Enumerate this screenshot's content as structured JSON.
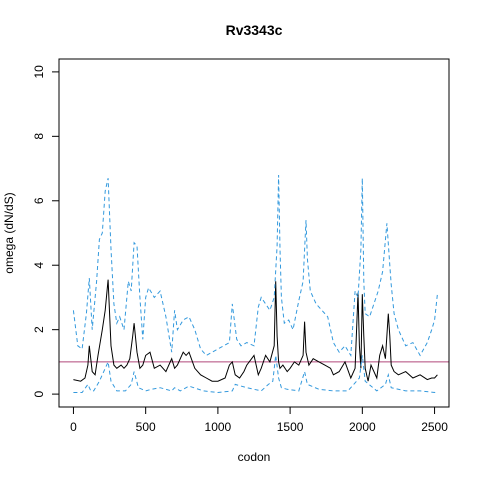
{
  "chart_data": {
    "type": "line",
    "title": "Rv3343c",
    "xlabel": "codon",
    "ylabel": "omega (dN/dS)",
    "xlim": [
      -100,
      2600
    ],
    "ylim": [
      -0.4,
      10.4
    ],
    "x_ticks": [
      0,
      500,
      1000,
      1500,
      2000,
      2500
    ],
    "y_ticks": [
      0,
      2,
      4,
      6,
      8,
      10
    ],
    "x_tick_labels": [
      "0",
      "500",
      "1000",
      "1500",
      "2000",
      "2500"
    ],
    "y_tick_labels": [
      "0",
      "2",
      "4",
      "6",
      "8",
      "10"
    ],
    "reference_line": {
      "y": 1,
      "color": "#b0487a"
    },
    "colors": {
      "mean": "#000000",
      "bounds": "#3399dd"
    },
    "series": [
      {
        "role": "mean",
        "style": "solid",
        "x": [
          0,
          50,
          80,
          100,
          110,
          130,
          150,
          170,
          200,
          220,
          240,
          260,
          280,
          300,
          330,
          350,
          370,
          390,
          410,
          420,
          440,
          460,
          480,
          500,
          530,
          560,
          600,
          640,
          680,
          700,
          720,
          760,
          780,
          800,
          840,
          880,
          920,
          960,
          1000,
          1050,
          1080,
          1100,
          1120,
          1150,
          1180,
          1200,
          1250,
          1280,
          1300,
          1330,
          1360,
          1390,
          1400,
          1410,
          1420,
          1430,
          1450,
          1480,
          1500,
          1530,
          1560,
          1590,
          1600,
          1610,
          1630,
          1660,
          1700,
          1740,
          1780,
          1800,
          1840,
          1880,
          1920,
          1950,
          1970,
          1980,
          1990,
          2000,
          2010,
          2020,
          2040,
          2060,
          2100,
          2120,
          2140,
          2160,
          2180,
          2190,
          2200,
          2220,
          2250,
          2300,
          2350,
          2400,
          2450,
          2480,
          2500,
          2520
        ],
        "y": [
          0.45,
          0.4,
          0.5,
          0.9,
          1.5,
          0.7,
          0.6,
          1.2,
          2.0,
          2.6,
          3.55,
          1.5,
          0.9,
          0.8,
          0.9,
          0.8,
          0.9,
          1.1,
          1.8,
          2.2,
          1.3,
          0.8,
          0.9,
          1.2,
          1.3,
          0.8,
          0.9,
          0.7,
          1.1,
          0.8,
          0.9,
          1.3,
          1.2,
          1.3,
          0.8,
          0.6,
          0.5,
          0.4,
          0.4,
          0.5,
          0.9,
          1.0,
          0.6,
          0.5,
          0.7,
          0.9,
          1.2,
          0.6,
          0.8,
          1.2,
          1.0,
          1.5,
          3.5,
          1.8,
          1.0,
          0.8,
          0.9,
          0.7,
          0.8,
          1.0,
          0.9,
          1.2,
          2.25,
          1.3,
          0.9,
          1.1,
          1.0,
          0.9,
          0.8,
          0.6,
          0.7,
          1.0,
          0.5,
          0.8,
          3.15,
          1.5,
          0.8,
          3.1,
          1.8,
          0.8,
          0.4,
          0.9,
          0.5,
          1.2,
          1.5,
          1.1,
          2.5,
          1.8,
          0.9,
          0.7,
          0.6,
          0.7,
          0.5,
          0.6,
          0.45,
          0.5,
          0.5,
          0.6
        ]
      },
      {
        "role": "upper",
        "style": "dashed",
        "x": [
          0,
          30,
          60,
          90,
          110,
          130,
          160,
          180,
          200,
          220,
          240,
          260,
          280,
          300,
          320,
          350,
          380,
          400,
          420,
          440,
          460,
          480,
          500,
          520,
          560,
          600,
          640,
          680,
          700,
          720,
          760,
          800,
          840,
          880,
          920,
          960,
          1000,
          1040,
          1080,
          1100,
          1130,
          1160,
          1200,
          1250,
          1280,
          1300,
          1330,
          1360,
          1390,
          1410,
          1420,
          1430,
          1440,
          1460,
          1490,
          1520,
          1560,
          1590,
          1610,
          1620,
          1640,
          1680,
          1720,
          1760,
          1800,
          1840,
          1880,
          1920,
          1950,
          1970,
          1990,
          2000,
          2010,
          2020,
          2050,
          2080,
          2110,
          2140,
          2170,
          2190,
          2200,
          2220,
          2250,
          2300,
          2350,
          2400,
          2450,
          2480,
          2500,
          2520
        ],
        "y": [
          2.6,
          1.5,
          1.4,
          2.5,
          3.6,
          2.0,
          3.5,
          4.8,
          5.0,
          6.3,
          6.7,
          4.5,
          2.8,
          2.2,
          2.4,
          2.0,
          3.5,
          3.2,
          4.7,
          4.6,
          3.0,
          1.7,
          3.0,
          3.3,
          3.0,
          3.2,
          2.4,
          1.3,
          2.6,
          2.0,
          2.3,
          2.4,
          2.0,
          1.4,
          1.2,
          1.3,
          1.4,
          1.5,
          1.6,
          2.8,
          1.7,
          1.5,
          1.6,
          1.5,
          2.7,
          3.0,
          2.8,
          2.6,
          3.0,
          4.6,
          6.8,
          4.5,
          3.0,
          2.2,
          2.3,
          2.0,
          2.9,
          3.5,
          5.4,
          4.2,
          3.2,
          2.8,
          2.6,
          2.4,
          1.6,
          1.3,
          1.5,
          1.2,
          3.2,
          3.0,
          4.5,
          6.7,
          3.5,
          2.5,
          2.4,
          2.8,
          3.2,
          3.8,
          5.3,
          4.0,
          3.4,
          2.5,
          2.0,
          1.5,
          1.6,
          1.2,
          1.6,
          2.0,
          2.3,
          3.1
        ]
      },
      {
        "role": "lower",
        "style": "dashed",
        "x": [
          0,
          60,
          100,
          120,
          140,
          180,
          200,
          240,
          260,
          300,
          360,
          400,
          420,
          450,
          500,
          540,
          600,
          680,
          700,
          740,
          800,
          900,
          1000,
          1100,
          1120,
          1200,
          1300,
          1350,
          1380,
          1400,
          1420,
          1440,
          1480,
          1560,
          1600,
          1620,
          1700,
          1800,
          1900,
          1980,
          2000,
          2020,
          2100,
          2160,
          2180,
          2200,
          2300,
          2400,
          2500,
          2520
        ],
        "y": [
          0.05,
          0.05,
          0.3,
          0.1,
          0.1,
          0.4,
          0.6,
          1.0,
          0.4,
          0.1,
          0.1,
          0.3,
          0.7,
          0.2,
          0.1,
          0.15,
          0.2,
          0.1,
          0.2,
          0.1,
          0.25,
          0.1,
          0.05,
          0.1,
          0.3,
          0.2,
          0.1,
          0.3,
          0.4,
          1.2,
          0.5,
          0.2,
          0.15,
          0.1,
          0.7,
          0.3,
          0.15,
          0.1,
          0.1,
          0.5,
          1.2,
          0.4,
          0.1,
          0.3,
          0.6,
          0.2,
          0.1,
          0.1,
          0.05,
          0.1
        ]
      }
    ]
  }
}
